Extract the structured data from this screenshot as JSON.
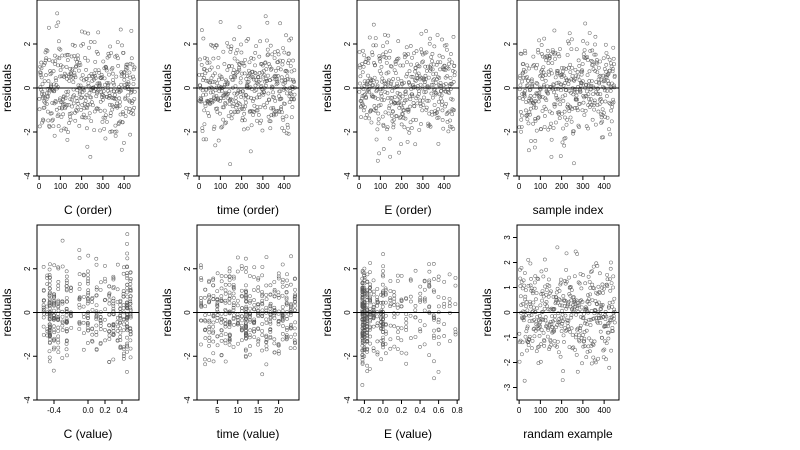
{
  "chart_data": [
    {
      "type": "scatter",
      "xlabel": "C (order)",
      "ylabel": "residuals",
      "xlim": [
        -10,
        470
      ],
      "ylim": [
        -4,
        4
      ],
      "xticks": [
        0,
        100,
        200,
        300,
        400
      ],
      "xticklabels": [
        "0",
        "100",
        "200",
        "300",
        "400"
      ],
      "yticks": [
        -4,
        -2,
        0,
        2
      ],
      "yticklabels": [
        "-4",
        "-2",
        "0",
        "2"
      ],
      "hline": 0,
      "x_distribution": "index",
      "x_range": [
        1,
        450
      ],
      "n_points": 450,
      "y_sd": 1.05,
      "marker": "open-circle",
      "marker_color": "#555555"
    },
    {
      "type": "scatter",
      "xlabel": "time (order)",
      "ylabel": "residuals",
      "xlim": [
        -10,
        470
      ],
      "ylim": [
        -4,
        4
      ],
      "xticks": [
        0,
        100,
        200,
        300,
        400
      ],
      "xticklabels": [
        "0",
        "100",
        "200",
        "300",
        "400"
      ],
      "yticks": [
        -4,
        -2,
        0,
        2
      ],
      "yticklabels": [
        "-4",
        "-2",
        "0",
        "2"
      ],
      "hline": 0,
      "x_distribution": "index",
      "x_range": [
        1,
        450
      ],
      "n_points": 450,
      "y_sd": 1.05,
      "marker": "open-circle",
      "marker_color": "#555555"
    },
    {
      "type": "scatter",
      "xlabel": "E (order)",
      "ylabel": "residuals",
      "xlim": [
        -10,
        470
      ],
      "ylim": [
        -4,
        4
      ],
      "xticks": [
        0,
        100,
        200,
        300,
        400
      ],
      "xticklabels": [
        "0",
        "100",
        "200",
        "300",
        "400"
      ],
      "yticks": [
        -4,
        -2,
        0,
        2
      ],
      "yticklabels": [
        "-4",
        "-2",
        "0",
        "2"
      ],
      "hline": 0,
      "x_distribution": "index",
      "x_range": [
        1,
        450
      ],
      "n_points": 450,
      "y_sd": 1.05,
      "marker": "open-circle",
      "marker_color": "#555555"
    },
    {
      "type": "scatter",
      "xlabel": "sample index",
      "ylabel": "residuals",
      "xlim": [
        -10,
        470
      ],
      "ylim": [
        -4,
        4
      ],
      "xticks": [
        0,
        100,
        200,
        300,
        400
      ],
      "xticklabels": [
        "0",
        "100",
        "200",
        "300",
        "400"
      ],
      "yticks": [
        -4,
        -2,
        0,
        2
      ],
      "yticklabels": [
        "-4",
        "-2",
        "0",
        "2"
      ],
      "hline": 0,
      "x_distribution": "index",
      "x_range": [
        1,
        450
      ],
      "n_points": 450,
      "y_sd": 1.05,
      "marker": "open-circle",
      "marker_color": "#555555"
    },
    {
      "type": "scatter",
      "xlabel": "C (value)",
      "ylabel": "residuals",
      "xlim": [
        -0.6,
        0.6
      ],
      "ylim": [
        -4,
        4
      ],
      "xticks": [
        -0.4,
        0.0,
        0.2,
        0.4
      ],
      "xticklabels": [
        "-0.4",
        "0.0",
        "0.2",
        "0.4"
      ],
      "yticks": [
        -4,
        -2,
        0,
        2
      ],
      "yticklabels": [
        "-4",
        "-2",
        "0",
        "2"
      ],
      "hline": 0,
      "x_distribution": "discrete",
      "x_values": [
        -0.52,
        -0.48,
        -0.45,
        -0.4,
        -0.35,
        -0.3,
        -0.25,
        -0.2,
        -0.1,
        -0.05,
        0.0,
        0.05,
        0.1,
        0.15,
        0.2,
        0.25,
        0.3,
        0.35,
        0.38,
        0.42,
        0.46,
        0.5
      ],
      "x_weights": [
        5,
        3,
        18,
        10,
        8,
        4,
        10,
        3,
        5,
        3,
        8,
        3,
        6,
        4,
        3,
        6,
        8,
        3,
        6,
        6,
        14,
        10
      ],
      "n_points": 450,
      "y_sd": 1.05,
      "marker": "open-circle",
      "marker_color": "#555555"
    },
    {
      "type": "scatter",
      "xlabel": "time (value)",
      "ylabel": "residuals",
      "xlim": [
        0,
        25
      ],
      "ylim": [
        -4,
        4
      ],
      "xticks": [
        5,
        10,
        15,
        20
      ],
      "xticklabels": [
        "5",
        "10",
        "15",
        "20"
      ],
      "yticks": [
        -4,
        -2,
        0,
        2
      ],
      "yticklabels": [
        "-4",
        "-2",
        "0",
        "2"
      ],
      "hline": 0,
      "x_distribution": "discrete",
      "x_values": [
        1,
        2,
        3,
        4,
        5,
        6,
        7,
        8,
        9,
        10,
        11,
        12,
        13,
        14,
        15,
        16,
        17,
        18,
        19,
        20,
        21,
        22,
        23,
        24
      ],
      "x_weights": [
        4,
        4,
        5,
        5,
        5,
        5,
        5,
        9,
        5,
        4,
        5,
        14,
        5,
        5,
        5,
        5,
        5,
        6,
        5,
        5,
        6,
        6,
        5,
        6
      ],
      "n_points": 450,
      "y_sd": 1.05,
      "marker": "open-circle",
      "marker_color": "#555555"
    },
    {
      "type": "scatter",
      "xlabel": "E (value)",
      "ylabel": "residuals",
      "xlim": [
        -0.28,
        0.82
      ],
      "ylim": [
        -4,
        4
      ],
      "xticks": [
        -0.2,
        0.0,
        0.2,
        0.4,
        0.6,
        0.8
      ],
      "xticklabels": [
        "-0.2",
        "0.0",
        "0.2",
        "0.4",
        "0.6",
        "0.8"
      ],
      "yticks": [
        -4,
        -2,
        0,
        2
      ],
      "yticklabels": [
        "-4",
        "-2",
        "0",
        "2"
      ],
      "hline": 0,
      "x_distribution": "discrete",
      "x_values": [
        -0.22,
        -0.2,
        -0.17,
        -0.14,
        -0.1,
        -0.06,
        -0.02,
        0.0,
        0.03,
        0.08,
        0.12,
        0.16,
        0.2,
        0.25,
        0.3,
        0.35,
        0.4,
        0.45,
        0.5,
        0.55,
        0.6,
        0.66,
        0.72,
        0.78
      ],
      "x_weights": [
        30,
        22,
        16,
        10,
        7,
        5,
        6,
        12,
        4,
        3,
        3,
        3,
        3,
        3,
        2,
        2,
        3,
        3,
        4,
        5,
        4,
        2,
        2,
        2
      ],
      "n_points": 450,
      "y_sd": 1.05,
      "marker": "open-circle",
      "marker_color": "#555555"
    },
    {
      "type": "scatter",
      "xlabel": "randam example",
      "ylabel": "residuals",
      "xlim": [
        -10,
        470
      ],
      "ylim": [
        -3.5,
        3.5
      ],
      "xticks": [
        0,
        100,
        200,
        300,
        400
      ],
      "xticklabels": [
        "0",
        "100",
        "200",
        "300",
        "400"
      ],
      "yticks": [
        -3,
        -2,
        -1,
        0,
        1,
        2,
        3
      ],
      "yticklabels": [
        "-3",
        "-2",
        "-1",
        "0",
        "1",
        "2",
        "3"
      ],
      "hline": 0,
      "x_distribution": "index",
      "x_range": [
        1,
        450
      ],
      "n_points": 450,
      "y_sd": 1.0,
      "marker": "open-circle",
      "marker_color": "#555555"
    }
  ]
}
